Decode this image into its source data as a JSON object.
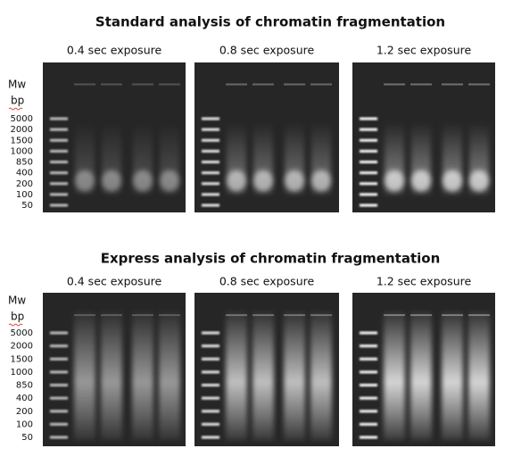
{
  "panels": [
    {
      "title": "Standard analysis of chromatin fragmentation",
      "exposures": [
        "0.4 sec exposure",
        "0.8 sec exposure",
        "1.2 sec exposure"
      ],
      "axis_title": "Mw",
      "axis_unit": "bp",
      "ladder": [
        "5000",
        "2000",
        "1500",
        "1000",
        "850",
        "400",
        "200",
        "100",
        "50"
      ]
    },
    {
      "title": "Express analysis of chromatin fragmentation",
      "exposures": [
        "0.4 sec exposure",
        "0.8 sec exposure",
        "1.2 sec exposure"
      ],
      "axis_title": "Mw",
      "axis_unit": "bp",
      "ladder": [
        "5000",
        "2000",
        "1500",
        "1000",
        "850",
        "400",
        "200",
        "100",
        "50"
      ]
    }
  ]
}
